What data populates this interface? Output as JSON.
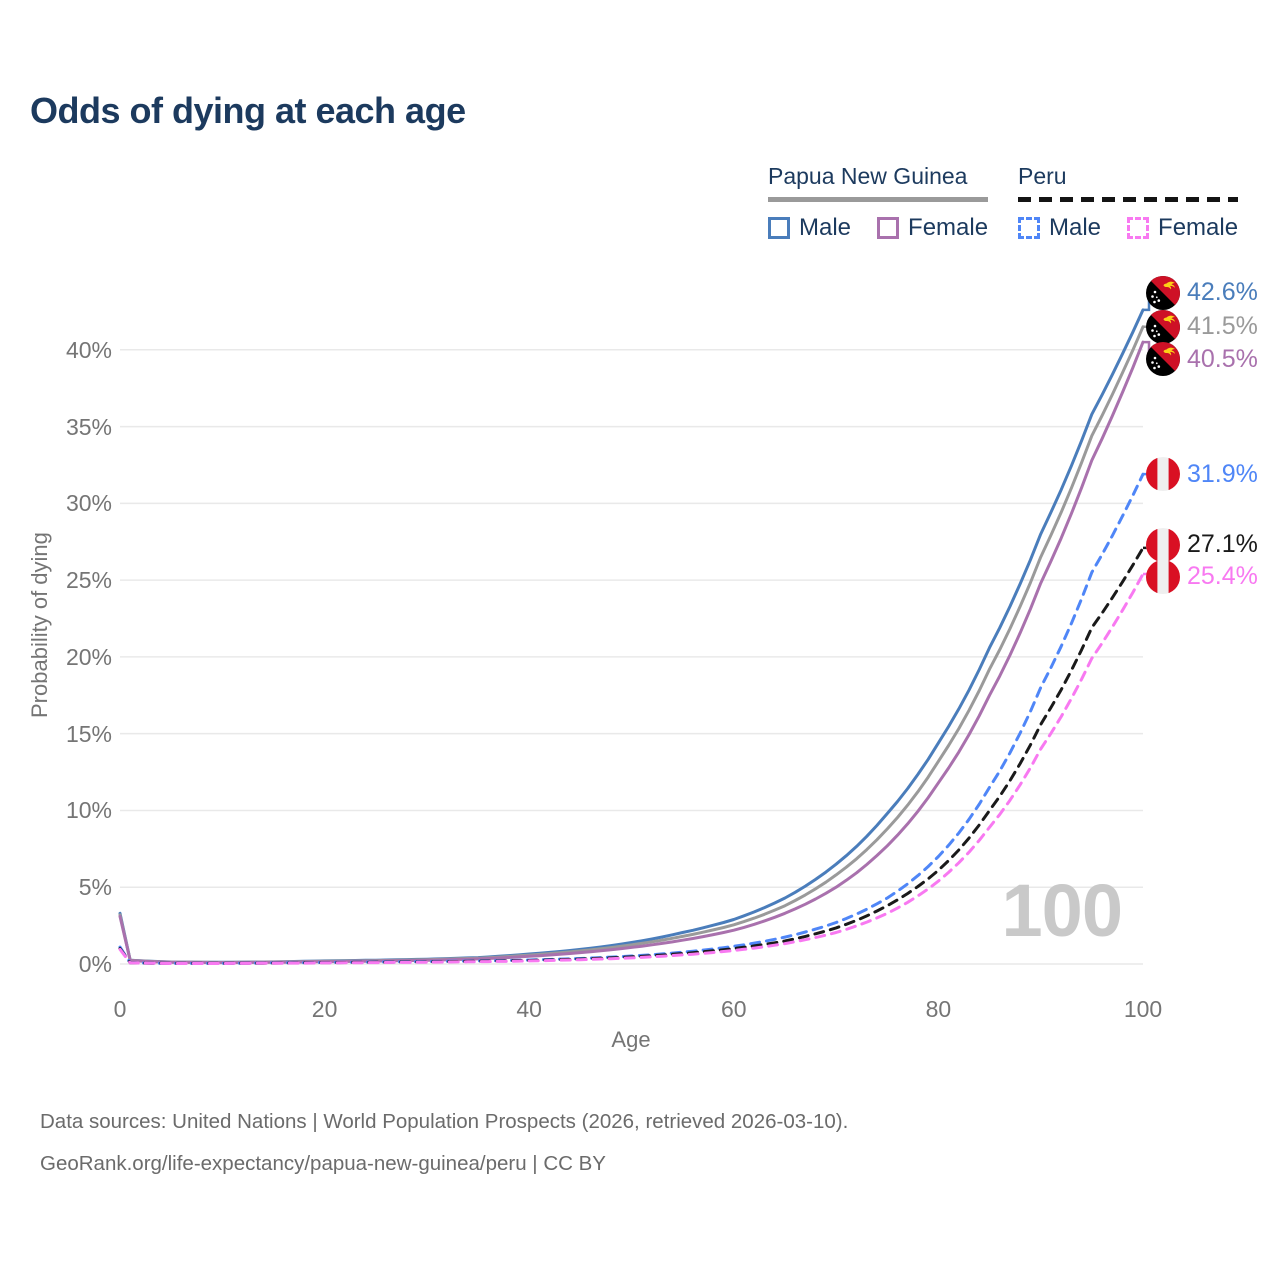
{
  "title": "Odds of dying at each age",
  "legend": {
    "groups": [
      {
        "label": "Papua New Guinea",
        "line_style": "solid",
        "underline_color": "#9a9a9a",
        "items": [
          {
            "label": "Male",
            "color": "#4a7dbb",
            "dashed": false
          },
          {
            "label": "Female",
            "color": "#a971ad",
            "dashed": false
          }
        ]
      },
      {
        "label": "Peru",
        "line_style": "dashed",
        "underline_color": "#141414",
        "items": [
          {
            "label": "Male",
            "color": "#4f86f7",
            "dashed": true
          },
          {
            "label": "Female",
            "color": "#f879f1",
            "dashed": true
          }
        ]
      }
    ]
  },
  "watermark": "100",
  "footer": {
    "line1": "Data sources: United Nations | World Population Prospects (2026, retrieved 2026-03-10).",
    "line2": "GeoRank.org/life-expectancy/papua-new-guinea/peru | CC BY"
  },
  "chart_data": {
    "type": "line",
    "title": "Odds of dying at each age",
    "xlabel": "Age",
    "ylabel": "Probability of dying",
    "xlim": [
      0,
      100
    ],
    "ylim": [
      0,
      44
    ],
    "x_ticks": [
      0,
      20,
      40,
      60,
      80,
      100
    ],
    "y_ticks": [
      {
        "value": 0,
        "label": "0%"
      },
      {
        "value": 5,
        "label": "5%"
      },
      {
        "value": 10,
        "label": "10%"
      },
      {
        "value": 15,
        "label": "15%"
      },
      {
        "value": 20,
        "label": "20%"
      },
      {
        "value": 25,
        "label": "25%"
      },
      {
        "value": 30,
        "label": "30%"
      },
      {
        "value": 35,
        "label": "35%"
      },
      {
        "value": 40,
        "label": "40%"
      }
    ],
    "grid": "horizontal-only",
    "legend_position": "top-right",
    "series": [
      {
        "name": "Papua New Guinea Male",
        "country": "Papua New Guinea",
        "sex": "Male",
        "color": "#4a7dbb",
        "dashed": false,
        "flag": "papua-new-guinea",
        "end_label": "42.6%",
        "end_label_color": "#4a7dbb",
        "label_dy": -17,
        "points": [
          [
            0,
            3.3
          ],
          [
            1,
            0.25
          ],
          [
            5,
            0.13
          ],
          [
            10,
            0.11
          ],
          [
            15,
            0.14
          ],
          [
            20,
            0.2
          ],
          [
            25,
            0.25
          ],
          [
            30,
            0.31
          ],
          [
            35,
            0.42
          ],
          [
            40,
            0.65
          ],
          [
            45,
            0.95
          ],
          [
            50,
            1.4
          ],
          [
            55,
            2.05
          ],
          [
            60,
            2.9
          ],
          [
            65,
            4.3
          ],
          [
            70,
            6.5
          ],
          [
            75,
            9.8
          ],
          [
            80,
            14.4
          ],
          [
            85,
            20.6
          ],
          [
            90,
            28.0
          ],
          [
            95,
            35.8
          ],
          [
            100,
            42.6
          ]
        ]
      },
      {
        "name": "Papua New Guinea Both sexes",
        "country": "Papua New Guinea",
        "sex": "Both",
        "color": "#9a9a9a",
        "dashed": false,
        "flag": "papua-new-guinea",
        "end_label": "41.5%",
        "end_label_color": "#9a9a9a",
        "label_dy": 0,
        "points": [
          [
            0,
            3.2
          ],
          [
            1,
            0.24
          ],
          [
            5,
            0.12
          ],
          [
            10,
            0.1
          ],
          [
            15,
            0.13
          ],
          [
            20,
            0.18
          ],
          [
            25,
            0.22
          ],
          [
            30,
            0.28
          ],
          [
            35,
            0.38
          ],
          [
            40,
            0.58
          ],
          [
            45,
            0.85
          ],
          [
            50,
            1.25
          ],
          [
            55,
            1.8
          ],
          [
            60,
            2.55
          ],
          [
            65,
            3.8
          ],
          [
            70,
            5.8
          ],
          [
            75,
            8.8
          ],
          [
            80,
            13.2
          ],
          [
            85,
            19.2
          ],
          [
            90,
            26.5
          ],
          [
            95,
            34.4
          ],
          [
            100,
            41.5
          ]
        ]
      },
      {
        "name": "Papua New Guinea Female",
        "country": "Papua New Guinea",
        "sex": "Female",
        "color": "#a971ad",
        "dashed": false,
        "flag": "papua-new-guinea",
        "end_label": "40.5%",
        "end_label_color": "#a971ad",
        "label_dy": 17,
        "points": [
          [
            0,
            3.1
          ],
          [
            1,
            0.23
          ],
          [
            5,
            0.11
          ],
          [
            10,
            0.09
          ],
          [
            15,
            0.11
          ],
          [
            20,
            0.15
          ],
          [
            25,
            0.19
          ],
          [
            30,
            0.24
          ],
          [
            35,
            0.33
          ],
          [
            40,
            0.5
          ],
          [
            45,
            0.74
          ],
          [
            50,
            1.08
          ],
          [
            55,
            1.55
          ],
          [
            60,
            2.2
          ],
          [
            65,
            3.3
          ],
          [
            70,
            5.0
          ],
          [
            75,
            7.7
          ],
          [
            80,
            11.8
          ],
          [
            85,
            17.5
          ],
          [
            90,
            24.8
          ],
          [
            95,
            32.8
          ],
          [
            100,
            40.5
          ]
        ]
      },
      {
        "name": "Peru Male",
        "country": "Peru",
        "sex": "Male",
        "color": "#4f86f7",
        "dashed": true,
        "flag": "peru",
        "end_label": "31.9%",
        "end_label_color": "#4f86f7",
        "label_dy": 0,
        "points": [
          [
            0,
            1.1
          ],
          [
            1,
            0.08
          ],
          [
            5,
            0.04
          ],
          [
            10,
            0.04
          ],
          [
            15,
            0.07
          ],
          [
            20,
            0.1
          ],
          [
            25,
            0.13
          ],
          [
            30,
            0.16
          ],
          [
            35,
            0.2
          ],
          [
            40,
            0.26
          ],
          [
            45,
            0.36
          ],
          [
            50,
            0.52
          ],
          [
            55,
            0.77
          ],
          [
            60,
            1.15
          ],
          [
            65,
            1.75
          ],
          [
            70,
            2.7
          ],
          [
            75,
            4.3
          ],
          [
            80,
            7.0
          ],
          [
            85,
            11.5
          ],
          [
            90,
            18.0
          ],
          [
            95,
            25.5
          ],
          [
            100,
            31.9
          ]
        ]
      },
      {
        "name": "Peru Both sexes",
        "country": "Peru",
        "sex": "Both",
        "color": "#1a1a1a",
        "dashed": true,
        "flag": "peru",
        "end_label": "27.1%",
        "end_label_color": "#1a1a1a",
        "label_dy": -3,
        "points": [
          [
            0,
            1.0
          ],
          [
            1,
            0.075
          ],
          [
            5,
            0.04
          ],
          [
            10,
            0.04
          ],
          [
            15,
            0.06
          ],
          [
            20,
            0.09
          ],
          [
            25,
            0.11
          ],
          [
            30,
            0.14
          ],
          [
            35,
            0.18
          ],
          [
            40,
            0.23
          ],
          [
            45,
            0.32
          ],
          [
            50,
            0.46
          ],
          [
            55,
            0.68
          ],
          [
            60,
            1.0
          ],
          [
            65,
            1.5
          ],
          [
            70,
            2.35
          ],
          [
            75,
            3.8
          ],
          [
            80,
            6.1
          ],
          [
            85,
            10.0
          ],
          [
            90,
            15.6
          ],
          [
            95,
            21.9
          ],
          [
            100,
            27.1
          ]
        ]
      },
      {
        "name": "Peru Female",
        "country": "Peru",
        "sex": "Female",
        "color": "#f879f1",
        "dashed": true,
        "flag": "peru",
        "end_label": "25.4%",
        "end_label_color": "#f879f1",
        "label_dy": 3,
        "points": [
          [
            0,
            0.95
          ],
          [
            1,
            0.07
          ],
          [
            5,
            0.035
          ],
          [
            10,
            0.035
          ],
          [
            15,
            0.05
          ],
          [
            20,
            0.07
          ],
          [
            25,
            0.09
          ],
          [
            30,
            0.12
          ],
          [
            35,
            0.15
          ],
          [
            40,
            0.2
          ],
          [
            45,
            0.28
          ],
          [
            50,
            0.4
          ],
          [
            55,
            0.59
          ],
          [
            60,
            0.88
          ],
          [
            65,
            1.33
          ],
          [
            70,
            2.05
          ],
          [
            75,
            3.3
          ],
          [
            80,
            5.4
          ],
          [
            85,
            8.9
          ],
          [
            90,
            14.0
          ],
          [
            95,
            19.9
          ],
          [
            100,
            25.4
          ]
        ]
      }
    ]
  }
}
